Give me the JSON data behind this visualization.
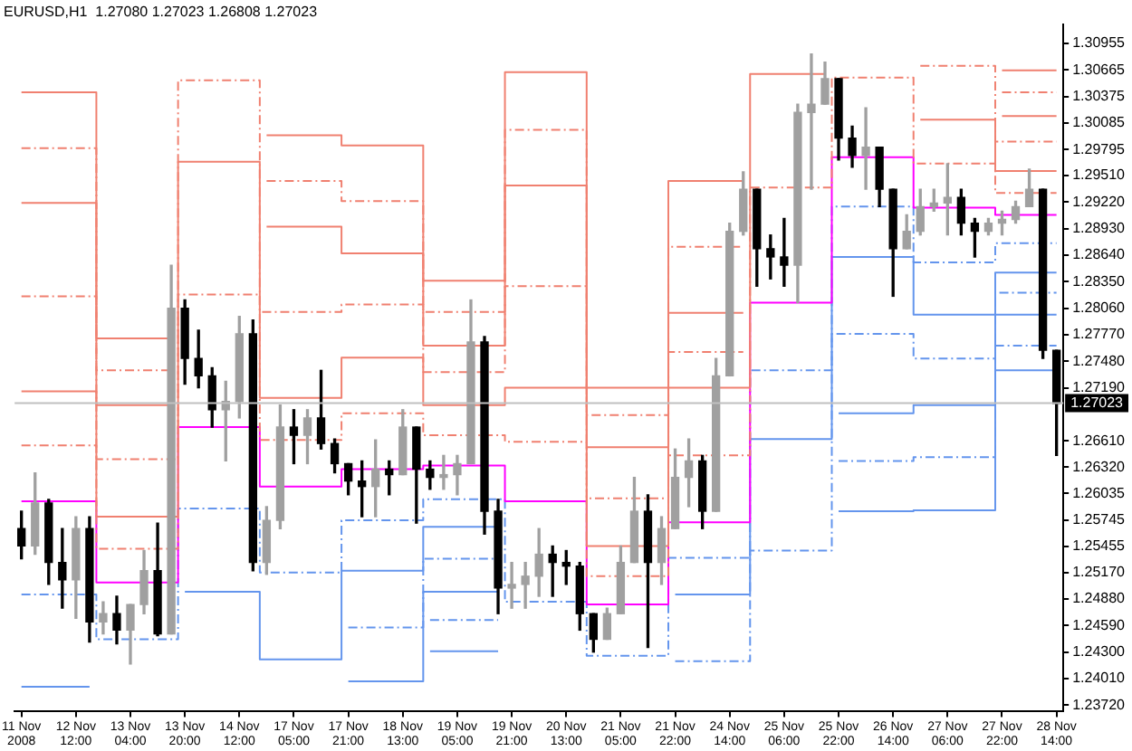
{
  "chart_data": {
    "type": "candlestick",
    "title": "EURUSD,H1  1.27080 1.27023 1.26808 1.27023",
    "marker": "none",
    "legend": false,
    "grid": false,
    "categories": [
      "11 Nov 2008",
      null,
      null,
      null,
      "12 Nov 12:00",
      null,
      null,
      null,
      "13 Nov 04:00",
      null,
      null,
      null,
      "13 Nov 20:00",
      null,
      null,
      null,
      "14 Nov 12:00",
      null,
      null,
      null,
      "17 Nov 05:00",
      null,
      null,
      null,
      "17 Nov 21:00",
      null,
      null,
      null,
      "18 Nov 13:00",
      null,
      null,
      null,
      "19 Nov 05:00",
      null,
      null,
      null,
      "19 Nov 21:00",
      null,
      null,
      null,
      "20 Nov 13:00",
      null,
      null,
      null,
      "21 Nov 05:00",
      null,
      null,
      null,
      "21 Nov 22:00",
      null,
      null,
      null,
      "24 Nov 14:00",
      null,
      null,
      null,
      "25 Nov 06:00",
      null,
      null,
      null,
      "25 Nov 22:00",
      null,
      null,
      null,
      "26 Nov 14:00",
      null,
      null,
      null,
      "27 Nov 06:00",
      null,
      null,
      null,
      "27 Nov 22:00",
      null,
      null,
      null,
      "28 Nov 14:00"
    ],
    "ohlc": [
      [
        1.2565,
        1.2584,
        1.2532,
        1.2546
      ],
      [
        1.2546,
        1.2626,
        1.2537,
        1.2593
      ],
      [
        1.2593,
        1.2597,
        1.2504,
        1.2528
      ],
      [
        1.2528,
        1.2565,
        1.2478,
        1.2509
      ],
      [
        1.2509,
        1.2578,
        1.2467,
        1.2565
      ],
      [
        1.2565,
        1.2578,
        1.2441,
        1.2463
      ],
      [
        1.2463,
        1.2485,
        1.245,
        1.2472
      ],
      [
        1.2472,
        1.2491,
        1.2439,
        1.2454
      ],
      [
        1.2454,
        1.2482,
        1.2417,
        1.2482
      ],
      [
        1.2482,
        1.2541,
        1.2472,
        1.2519
      ],
      [
        1.2519,
        1.2571,
        1.2448,
        1.245
      ],
      [
        1.245,
        1.2853,
        1.245,
        1.2806
      ],
      [
        1.2806,
        1.2815,
        1.2723,
        1.2751
      ],
      [
        1.2751,
        1.2782,
        1.2719,
        1.2732
      ],
      [
        1.2732,
        1.2741,
        1.2676,
        1.2695
      ],
      [
        1.2695,
        1.2726,
        1.2639,
        1.2704
      ],
      [
        1.2704,
        1.2797,
        1.2686,
        1.2778
      ],
      [
        1.2778,
        1.2793,
        1.2519,
        1.2528
      ],
      [
        1.2528,
        1.2589,
        1.2515,
        1.2574
      ],
      [
        1.2574,
        1.27,
        1.2565,
        1.2676
      ],
      [
        1.2676,
        1.2695,
        1.2636,
        1.2667
      ],
      [
        1.2667,
        1.2695,
        1.2636,
        1.2686
      ],
      [
        1.2686,
        1.2738,
        1.2652,
        1.2658
      ],
      [
        1.2658,
        1.2663,
        1.2626,
        1.2636
      ],
      [
        1.2636,
        1.2636,
        1.2602,
        1.2617
      ],
      [
        1.2617,
        1.2639,
        1.2578,
        1.2611
      ],
      [
        1.2611,
        1.2662,
        1.2578,
        1.263
      ],
      [
        1.263,
        1.2639,
        1.2602,
        1.2624
      ],
      [
        1.2624,
        1.2695,
        1.2624,
        1.2676
      ],
      [
        1.2676,
        1.2676,
        1.2571,
        1.263
      ],
      [
        1.263,
        1.2639,
        1.2608,
        1.2621
      ],
      [
        1.2621,
        1.2645,
        1.2608,
        1.2624
      ],
      [
        1.2624,
        1.2645,
        1.2602,
        1.2636
      ],
      [
        1.2636,
        1.2815,
        1.2636,
        1.2769
      ],
      [
        1.2769,
        1.2775,
        1.2559,
        1.2584
      ],
      [
        1.2584,
        1.2597,
        1.2472,
        1.25
      ],
      [
        1.25,
        1.2528,
        1.2478,
        1.2504
      ],
      [
        1.2504,
        1.2528,
        1.2478,
        1.2513
      ],
      [
        1.2513,
        1.2565,
        1.2491,
        1.2537
      ],
      [
        1.2537,
        1.2546,
        1.2491,
        1.2528
      ],
      [
        1.2528,
        1.2541,
        1.2504,
        1.2524
      ],
      [
        1.2524,
        1.2528,
        1.2454,
        1.2472
      ],
      [
        1.2472,
        1.2472,
        1.243,
        1.2444
      ],
      [
        1.2444,
        1.2478,
        1.2444,
        1.2472
      ],
      [
        1.2472,
        1.2546,
        1.2472,
        1.2528
      ],
      [
        1.2528,
        1.2621,
        1.2528,
        1.2584
      ],
      [
        1.2584,
        1.2602,
        1.2435,
        1.2528
      ],
      [
        1.2528,
        1.2578,
        1.2504,
        1.2565
      ],
      [
        1.2565,
        1.2652,
        1.2565,
        1.2621
      ],
      [
        1.2621,
        1.2663,
        1.2589,
        1.2639
      ],
      [
        1.2639,
        1.2645,
        1.2565,
        1.2584
      ],
      [
        1.2584,
        1.2751,
        1.2584,
        1.2732
      ],
      [
        1.2732,
        1.2899,
        1.2732,
        1.289
      ],
      [
        1.289,
        1.2955,
        1.2886,
        1.2936
      ],
      [
        1.2936,
        1.2936,
        1.283,
        1.2871
      ],
      [
        1.2871,
        1.2886,
        1.2838,
        1.2862
      ],
      [
        1.2862,
        1.2904,
        1.283,
        1.2853
      ],
      [
        1.2853,
        1.3029,
        1.2812,
        1.302
      ],
      [
        1.302,
        1.3084,
        1.2936,
        1.3029
      ],
      [
        1.3029,
        1.3075,
        1.3029,
        1.3057
      ],
      [
        1.3057,
        1.3057,
        1.2968,
        1.2992
      ],
      [
        1.2992,
        1.3005,
        1.296,
        1.2973
      ],
      [
        1.2973,
        1.3025,
        1.2936,
        1.2982
      ],
      [
        1.2982,
        1.2982,
        1.2917,
        1.2936
      ],
      [
        1.2936,
        1.2936,
        1.2819,
        1.2871
      ],
      [
        1.2871,
        1.2908,
        1.2871,
        1.289
      ],
      [
        1.289,
        1.2936,
        1.2886,
        1.2917
      ],
      [
        1.2917,
        1.2936,
        1.2912,
        1.2921
      ],
      [
        1.2921,
        1.2964,
        1.2886,
        1.2927
      ],
      [
        1.2927,
        1.2936,
        1.2886,
        1.2899
      ],
      [
        1.2899,
        1.2904,
        1.2862,
        1.289
      ],
      [
        1.289,
        1.2904,
        1.2886,
        1.2899
      ],
      [
        1.2899,
        1.2912,
        1.2886,
        1.2903
      ],
      [
        1.2903,
        1.2923,
        1.2899,
        1.2917
      ],
      [
        1.2917,
        1.2958,
        1.2917,
        1.2936
      ],
      [
        1.2936,
        1.2936,
        1.2751,
        1.276
      ],
      [
        1.276,
        1.276,
        1.2645,
        1.2702
      ]
    ],
    "colors": [
      "#000000",
      "#a0a0a0",
      "#000000",
      "#000000",
      "#a0a0a0",
      "#000000",
      "#a0a0a0",
      "#000000",
      "#a0a0a0",
      "#a0a0a0",
      "#000000",
      "#a0a0a0",
      "#000000",
      "#000000",
      "#000000",
      "#a0a0a0",
      "#a0a0a0",
      "#000000",
      "#a0a0a0",
      "#a0a0a0",
      "#000000",
      "#a0a0a0",
      "#000000",
      "#000000",
      "#000000",
      "#000000",
      "#a0a0a0",
      "#000000",
      "#a0a0a0",
      "#000000",
      "#000000",
      "#a0a0a0",
      "#a0a0a0",
      "#a0a0a0",
      "#000000",
      "#000000",
      "#a0a0a0",
      "#a0a0a0",
      "#a0a0a0",
      "#000000",
      "#000000",
      "#000000",
      "#000000",
      "#a0a0a0",
      "#a0a0a0",
      "#a0a0a0",
      "#000000",
      "#a0a0a0",
      "#a0a0a0",
      "#a0a0a0",
      "#000000",
      "#a0a0a0",
      "#a0a0a0",
      "#a0a0a0",
      "#000000",
      "#000000",
      "#000000",
      "#a0a0a0",
      "#a0a0a0",
      "#a0a0a0",
      "#000000",
      "#000000",
      "#a0a0a0",
      "#000000",
      "#000000",
      "#a0a0a0",
      "#a0a0a0",
      "#a0a0a0",
      "#a0a0a0",
      "#000000",
      "#000000",
      "#a0a0a0",
      "#a0a0a0",
      "#a0a0a0",
      "#a0a0a0",
      "#000000",
      "#000000"
    ],
    "series": [
      {
        "type": "step",
        "color": "#f08070",
        "line_style": "solid",
        "values": [
          1.3042,
          1.3042,
          1.3042,
          1.3042,
          1.3042,
          1.3042,
          1.2773,
          1.2773,
          1.2773,
          1.2773,
          1.2773,
          1.2773,
          null,
          null,
          null,
          null,
          null,
          null,
          1.2995,
          1.2995,
          1.2995,
          1.2995,
          1.2995,
          1.2995,
          1.2984,
          1.2984,
          1.2984,
          1.2984,
          1.2984,
          1.2984,
          1.2836,
          1.2836,
          1.2836,
          1.2836,
          1.2836,
          1.2836,
          1.3064,
          1.3064,
          1.3064,
          1.3064,
          1.3064,
          1.3064,
          1.2719,
          1.2719,
          1.2719,
          1.2719,
          1.2719,
          1.2719,
          1.2945,
          1.2945,
          1.2945,
          1.2945,
          1.2945,
          1.2945,
          null,
          null,
          null,
          null,
          null,
          null,
          null,
          null,
          null,
          null,
          null,
          null,
          null,
          null,
          null,
          null,
          null,
          null,
          1.3066,
          1.3066,
          1.3066,
          1.3066,
          1.3066
        ]
      },
      {
        "type": "step",
        "color": "#f08070",
        "line_style": "dashed",
        "values": [
          1.2981,
          1.2981,
          1.2981,
          1.2981,
          1.2981,
          1.2981,
          1.2738,
          1.2738,
          1.2738,
          1.2738,
          1.2738,
          1.2738,
          null,
          null,
          null,
          null,
          null,
          null,
          1.2945,
          1.2945,
          1.2945,
          1.2945,
          1.2945,
          1.2945,
          1.2923,
          1.2923,
          1.2923,
          1.2923,
          1.2923,
          1.2923,
          1.2802,
          1.2802,
          1.2802,
          1.2802,
          1.2802,
          1.2802,
          1.3001,
          1.3001,
          1.3001,
          1.3001,
          1.3001,
          1.3001,
          1.2689,
          1.2689,
          1.2689,
          1.2689,
          1.2689,
          1.2689,
          1.2873,
          1.2873,
          1.2873,
          1.2873,
          1.2873,
          1.2873,
          null,
          null,
          null,
          null,
          null,
          null,
          null,
          null,
          null,
          null,
          null,
          null,
          null,
          null,
          null,
          null,
          null,
          null,
          1.3042,
          1.3042,
          1.3042,
          1.3042,
          1.3042
        ]
      },
      {
        "type": "step",
        "color": "#f08070",
        "line_style": "solid",
        "values": [
          1.2921,
          1.2921,
          1.2921,
          1.2921,
          1.2921,
          1.2921,
          1.27,
          1.27,
          1.27,
          1.27,
          1.27,
          1.27,
          null,
          null,
          null,
          null,
          null,
          null,
          1.2895,
          1.2895,
          1.2895,
          1.2895,
          1.2895,
          1.2895,
          1.2866,
          1.2866,
          1.2866,
          1.2866,
          1.2866,
          1.2866,
          1.2765,
          1.2765,
          1.2765,
          1.2765,
          1.2765,
          1.2765,
          1.294,
          1.294,
          1.294,
          1.294,
          1.294,
          1.294,
          1.2654,
          1.2654,
          1.2654,
          1.2654,
          1.2654,
          1.2654,
          1.2801,
          1.2801,
          1.2801,
          1.2801,
          1.2801,
          1.2801,
          null,
          null,
          null,
          null,
          null,
          null,
          null,
          null,
          null,
          null,
          null,
          null,
          null,
          null,
          null,
          null,
          null,
          null,
          1.3016,
          1.3016,
          1.3016,
          1.3016,
          1.3016
        ]
      },
      {
        "type": "step",
        "color": "#f08070",
        "line_style": "dashed",
        "values": [
          1.2819,
          1.2819,
          1.2819,
          1.2819,
          1.2819,
          1.2819,
          1.2641,
          1.2641,
          1.2641,
          1.2641,
          1.2641,
          1.2641,
          1.3055,
          1.3055,
          1.3055,
          1.3055,
          1.3055,
          1.3055,
          1.2802,
          1.2802,
          1.2802,
          1.2802,
          1.2802,
          1.2802,
          1.281,
          1.281,
          1.281,
          1.281,
          1.281,
          1.281,
          1.2736,
          1.2736,
          1.2736,
          1.2736,
          1.2736,
          1.2736,
          1.283,
          1.283,
          1.283,
          1.283,
          1.283,
          1.283,
          1.2598,
          1.2598,
          1.2598,
          1.2598,
          1.2598,
          1.2598,
          1.2758,
          1.2758,
          1.2758,
          1.2758,
          1.2758,
          1.2758,
          null,
          null,
          null,
          null,
          null,
          null,
          null,
          null,
          null,
          null,
          null,
          null,
          1.3071,
          1.3071,
          1.3071,
          1.3071,
          1.3071,
          1.3071,
          1.2988,
          1.2988,
          1.2988,
          1.2988,
          1.2988
        ]
      },
      {
        "type": "step",
        "color": "#f08070",
        "line_style": "solid",
        "values": [
          1.2715,
          1.2715,
          1.2715,
          1.2715,
          1.2715,
          1.2715,
          1.2578,
          1.2578,
          1.2578,
          1.2578,
          1.2578,
          1.2578,
          1.2966,
          1.2966,
          1.2966,
          1.2966,
          1.2966,
          1.2966,
          1.2708,
          1.2708,
          1.2708,
          1.2708,
          1.2708,
          1.2708,
          1.2752,
          1.2752,
          1.2752,
          1.2752,
          1.2752,
          1.2752,
          1.27,
          1.27,
          1.27,
          1.27,
          1.27,
          1.27,
          1.2719,
          1.2719,
          1.2719,
          1.2719,
          1.2719,
          1.2719,
          1.2546,
          1.2546,
          1.2546,
          1.2546,
          1.2546,
          1.2546,
          1.2719,
          1.2719,
          1.2719,
          1.2719,
          1.2719,
          1.2719,
          1.3062,
          1.3062,
          1.3062,
          1.3062,
          1.3062,
          1.3062,
          null,
          null,
          null,
          null,
          null,
          null,
          1.3012,
          1.3012,
          1.3012,
          1.3012,
          1.3012,
          1.3012,
          1.2956,
          1.2956,
          1.2956,
          1.2956,
          1.2956
        ]
      },
      {
        "type": "step",
        "color": "#f08070",
        "line_style": "dashed",
        "values": [
          1.2656,
          1.2656,
          1.2656,
          1.2656,
          1.2656,
          1.2656,
          1.2543,
          1.2543,
          1.2543,
          1.2543,
          1.2543,
          1.2543,
          1.2821,
          1.2821,
          1.2821,
          1.2821,
          1.2821,
          1.2821,
          1.2662,
          1.2662,
          1.2662,
          1.2662,
          1.2662,
          1.2662,
          1.2691,
          1.2691,
          1.2691,
          1.2691,
          1.2691,
          1.2691,
          1.2667,
          1.2667,
          1.2667,
          1.2667,
          1.2667,
          1.2667,
          1.266,
          1.266,
          1.266,
          1.266,
          1.266,
          1.266,
          1.2513,
          1.2513,
          1.2513,
          1.2513,
          1.2513,
          1.2513,
          1.2645,
          1.2645,
          1.2645,
          1.2645,
          1.2645,
          1.2645,
          1.2938,
          1.2938,
          1.2938,
          1.2938,
          1.2938,
          1.2938,
          1.3058,
          1.3058,
          1.3058,
          1.3058,
          1.3058,
          1.3058,
          1.2964,
          1.2964,
          1.2964,
          1.2964,
          1.2964,
          1.2964,
          1.2932,
          1.2932,
          1.2932,
          1.2932,
          1.2932
        ]
      },
      {
        "type": "step",
        "color": "#ff00ff",
        "line_style": "solid",
        "values": [
          1.2595,
          1.2595,
          1.2595,
          1.2595,
          1.2595,
          1.2595,
          1.2506,
          1.2506,
          1.2506,
          1.2506,
          1.2506,
          1.2506,
          1.2676,
          1.2676,
          1.2676,
          1.2676,
          1.2676,
          1.2676,
          1.2611,
          1.2611,
          1.2611,
          1.2611,
          1.2611,
          1.2611,
          1.263,
          1.263,
          1.263,
          1.263,
          1.263,
          1.263,
          1.2634,
          1.2634,
          1.2634,
          1.2634,
          1.2634,
          1.2634,
          1.2595,
          1.2595,
          1.2595,
          1.2595,
          1.2595,
          1.2595,
          1.2482,
          1.2482,
          1.2482,
          1.2482,
          1.2482,
          1.2482,
          1.2572,
          1.2572,
          1.2572,
          1.2572,
          1.2572,
          1.2572,
          1.2812,
          1.2812,
          1.2812,
          1.2812,
          1.2812,
          1.2812,
          1.2971,
          1.2971,
          1.2971,
          1.2971,
          1.2971,
          1.2971,
          1.2916,
          1.2916,
          1.2916,
          1.2916,
          1.2916,
          1.2916,
          1.2908,
          1.2908,
          1.2908,
          1.2908,
          1.2908
        ]
      },
      {
        "type": "step",
        "color": "#6495ed",
        "line_style": "dashed",
        "values": [
          1.2493,
          1.2493,
          1.2493,
          1.2493,
          1.2493,
          1.2493,
          1.2444,
          1.2444,
          1.2444,
          1.2444,
          1.2444,
          1.2444,
          1.2587,
          1.2587,
          1.2587,
          1.2587,
          1.2587,
          1.2587,
          1.2517,
          1.2517,
          1.2517,
          1.2517,
          1.2517,
          1.2517,
          1.2574,
          1.2574,
          1.2574,
          1.2574,
          1.2574,
          1.2574,
          1.2597,
          1.2597,
          1.2597,
          1.2597,
          1.2597,
          1.2597,
          1.2485,
          1.2485,
          1.2485,
          1.2485,
          1.2485,
          1.2485,
          1.2426,
          1.2426,
          1.2426,
          1.2426,
          1.2426,
          1.2426,
          1.2533,
          1.2533,
          1.2533,
          1.2533,
          1.2533,
          1.2533,
          1.2738,
          1.2738,
          1.2738,
          1.2738,
          1.2738,
          1.2738,
          1.2917,
          1.2917,
          1.2917,
          1.2917,
          1.2917,
          1.2917,
          1.2856,
          1.2856,
          1.2856,
          1.2856,
          1.2856,
          1.2856,
          1.2877,
          1.2877,
          1.2877,
          1.2877,
          1.2877
        ]
      },
      {
        "type": "step",
        "color": "#6495ed",
        "line_style": "solid",
        "values": [
          1.2392,
          1.2392,
          1.2392,
          1.2392,
          1.2392,
          1.2392,
          null,
          null,
          null,
          null,
          null,
          null,
          1.2496,
          1.2496,
          1.2496,
          1.2496,
          1.2496,
          1.2496,
          1.2422,
          1.2422,
          1.2422,
          1.2422,
          1.2422,
          1.2422,
          1.2519,
          1.2519,
          1.2519,
          1.2519,
          1.2519,
          1.2519,
          1.2567,
          1.2567,
          1.2567,
          1.2567,
          1.2567,
          1.2567,
          null,
          null,
          null,
          null,
          null,
          null,
          null,
          null,
          null,
          null,
          null,
          null,
          1.2493,
          1.2493,
          1.2493,
          1.2493,
          1.2493,
          1.2493,
          1.2663,
          1.2663,
          1.2663,
          1.2663,
          1.2663,
          1.2663,
          1.2862,
          1.2862,
          1.2862,
          1.2862,
          1.2862,
          1.2862,
          1.2799,
          1.2799,
          1.2799,
          1.2799,
          1.2799,
          1.2799,
          1.2845,
          1.2845,
          1.2845,
          1.2845,
          1.2845
        ]
      },
      {
        "type": "step",
        "color": "#6495ed",
        "line_style": "dashed",
        "values": [
          null,
          null,
          null,
          null,
          null,
          null,
          null,
          null,
          null,
          null,
          null,
          null,
          null,
          null,
          null,
          null,
          null,
          null,
          null,
          null,
          null,
          null,
          null,
          null,
          1.2457,
          1.2457,
          1.2457,
          1.2457,
          1.2457,
          1.2457,
          1.2532,
          1.2532,
          1.2532,
          1.2532,
          1.2532,
          1.2532,
          null,
          null,
          null,
          null,
          null,
          null,
          null,
          null,
          null,
          null,
          null,
          null,
          1.242,
          1.242,
          1.242,
          1.242,
          1.242,
          1.242,
          1.2541,
          1.2541,
          1.2541,
          1.2541,
          1.2541,
          1.2541,
          1.2778,
          1.2778,
          1.2778,
          1.2778,
          1.2778,
          1.2778,
          1.2751,
          1.2751,
          1.2751,
          1.2751,
          1.2751,
          1.2751,
          1.2823,
          1.2823,
          1.2823,
          1.2823,
          1.2823
        ]
      },
      {
        "type": "step",
        "color": "#6495ed",
        "line_style": "solid",
        "values": [
          null,
          null,
          null,
          null,
          null,
          null,
          null,
          null,
          null,
          null,
          null,
          null,
          null,
          null,
          null,
          null,
          null,
          null,
          null,
          null,
          null,
          null,
          null,
          null,
          1.2398,
          1.2398,
          1.2398,
          1.2398,
          1.2398,
          1.2398,
          1.2496,
          1.2496,
          1.2496,
          1.2496,
          1.2496,
          1.2496,
          null,
          null,
          null,
          null,
          null,
          null,
          null,
          null,
          null,
          null,
          null,
          null,
          null,
          null,
          null,
          null,
          null,
          null,
          null,
          null,
          null,
          null,
          null,
          null,
          1.2691,
          1.2691,
          1.2691,
          1.2691,
          1.2691,
          1.2691,
          1.27,
          1.27,
          1.27,
          1.27,
          1.27,
          1.27,
          1.2799,
          1.2799,
          1.2799,
          1.2799,
          1.2799
        ]
      },
      {
        "type": "step",
        "color": "#6495ed",
        "line_style": "dashed",
        "values": [
          null,
          null,
          null,
          null,
          null,
          null,
          null,
          null,
          null,
          null,
          null,
          null,
          null,
          null,
          null,
          null,
          null,
          null,
          null,
          null,
          null,
          null,
          null,
          null,
          null,
          null,
          null,
          null,
          null,
          null,
          1.2465,
          1.2465,
          1.2465,
          1.2465,
          1.2465,
          1.2465,
          null,
          null,
          null,
          null,
          null,
          null,
          null,
          null,
          null,
          null,
          null,
          null,
          null,
          null,
          null,
          null,
          null,
          null,
          null,
          null,
          null,
          null,
          null,
          null,
          1.2639,
          1.2639,
          1.2639,
          1.2639,
          1.2639,
          1.2639,
          1.2643,
          1.2643,
          1.2643,
          1.2643,
          1.2643,
          1.2643,
          1.2765,
          1.2765,
          1.2765,
          1.2765,
          1.2765
        ]
      },
      {
        "type": "step",
        "color": "#6495ed",
        "line_style": "solid",
        "values": [
          null,
          null,
          null,
          null,
          null,
          null,
          null,
          null,
          null,
          null,
          null,
          null,
          null,
          null,
          null,
          null,
          null,
          null,
          null,
          null,
          null,
          null,
          null,
          null,
          null,
          null,
          null,
          null,
          null,
          null,
          1.2431,
          1.2431,
          1.2431,
          1.2431,
          1.2431,
          1.2431,
          null,
          null,
          null,
          null,
          null,
          null,
          null,
          null,
          null,
          null,
          null,
          null,
          null,
          null,
          null,
          null,
          null,
          null,
          null,
          null,
          null,
          null,
          null,
          null,
          1.2584,
          1.2584,
          1.2584,
          1.2584,
          1.2584,
          1.2584,
          1.2585,
          1.2585,
          1.2585,
          1.2585,
          1.2585,
          1.2585,
          1.2738,
          1.2738,
          1.2738,
          1.2738,
          1.2738
        ]
      }
    ],
    "ylim": [
      1.2365,
      1.3116
    ],
    "yticks": [
      {
        "value": 1.30955,
        "label": "1.30955"
      },
      {
        "value": 1.30665,
        "label": "1.30665"
      },
      {
        "value": 1.30375,
        "label": "1.30375"
      },
      {
        "value": 1.30085,
        "label": "1.30085"
      },
      {
        "value": 1.29795,
        "label": "1.29795"
      },
      {
        "value": 1.2951,
        "label": "1.29510"
      },
      {
        "value": 1.2922,
        "label": "1.29220"
      },
      {
        "value": 1.2893,
        "label": "1.28930"
      },
      {
        "value": 1.2864,
        "label": "1.28640"
      },
      {
        "value": 1.2835,
        "label": "1.28350"
      },
      {
        "value": 1.2806,
        "label": "1.28060"
      },
      {
        "value": 1.2777,
        "label": "1.27770"
      },
      {
        "value": 1.2748,
        "label": "1.27480"
      },
      {
        "value": 1.2719,
        "label": "1.27190"
      },
      {
        "value": 1.2661,
        "label": "1.26610"
      },
      {
        "value": 1.2632,
        "label": "1.26320"
      },
      {
        "value": 1.26035,
        "label": "1.26035"
      },
      {
        "value": 1.25745,
        "label": "1.25745"
      },
      {
        "value": 1.25455,
        "label": "1.25455"
      },
      {
        "value": 1.2517,
        "label": "1.25170"
      },
      {
        "value": 1.2488,
        "label": "1.24880"
      },
      {
        "value": 1.2459,
        "label": "1.24590"
      },
      {
        "value": 1.243,
        "label": "1.24300"
      },
      {
        "value": 1.2401,
        "label": "1.24010"
      },
      {
        "value": 1.2372,
        "label": "1.23720"
      }
    ],
    "ref_lines": [
      {
        "axis": "y",
        "value": 1.27023,
        "label": "1.27023",
        "color": "#c0c0c0"
      }
    ]
  }
}
